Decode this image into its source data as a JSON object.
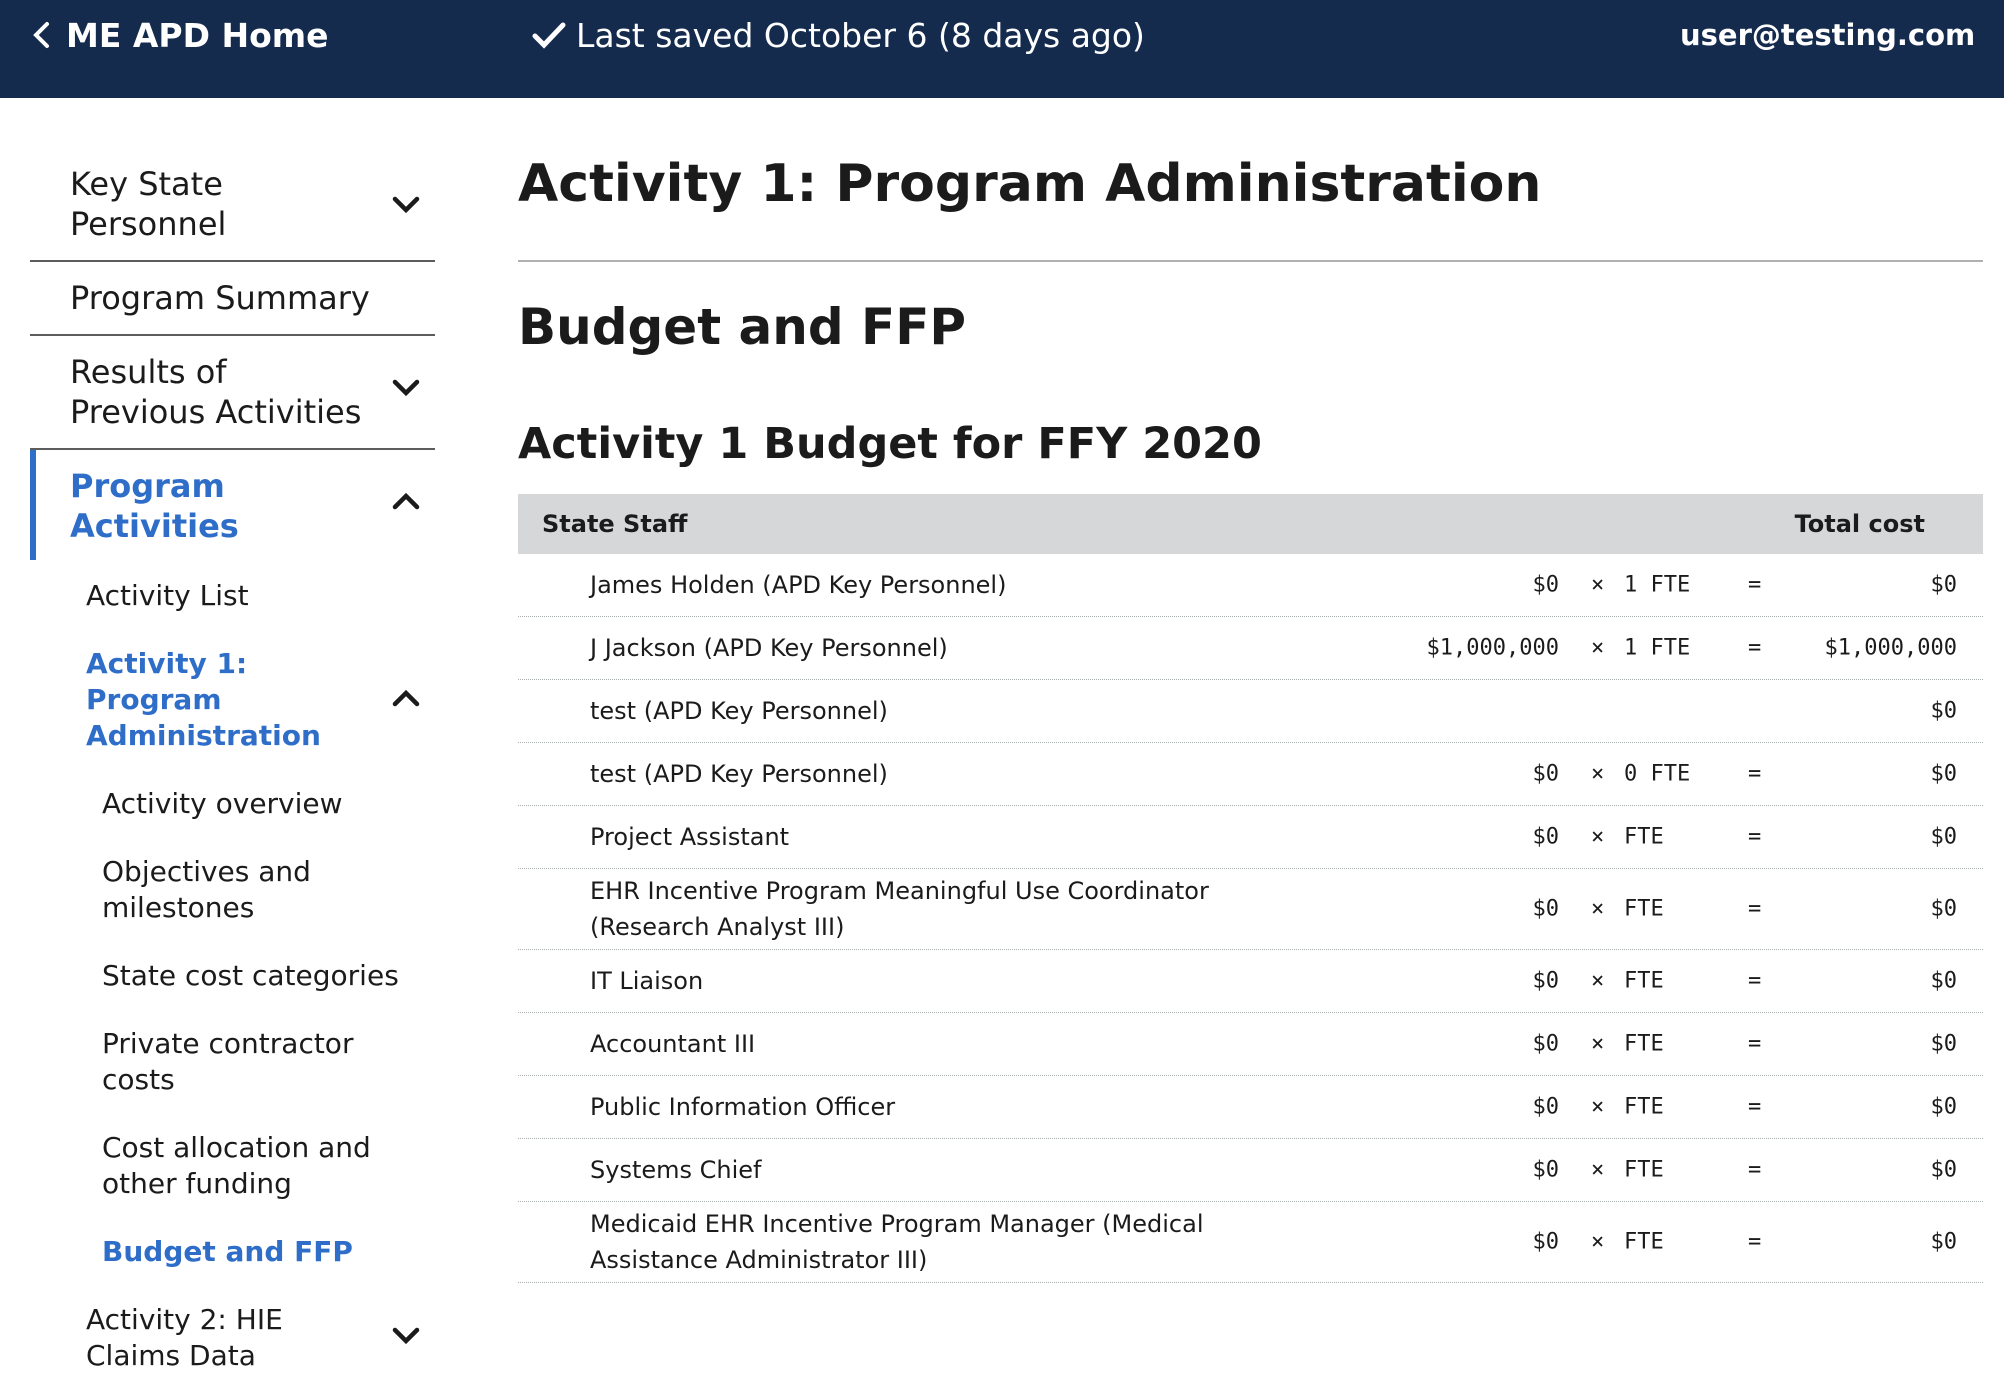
{
  "header": {
    "home_label": "ME APD Home",
    "saved_text": "Last saved October 6 (8 days ago)",
    "user_email": "user@testing.com"
  },
  "sidebar": {
    "items": [
      {
        "label": "Key State Personnel"
      },
      {
        "label": "Program Summary"
      },
      {
        "label": "Results of Previous Activities"
      },
      {
        "label": "Program Activities"
      }
    ],
    "activities": {
      "list_label": "Activity List",
      "activity1_label": "Activity 1: Program Administration",
      "sections": [
        "Activity overview",
        "Objectives and milestones",
        "State cost categories",
        "Private contractor costs",
        "Cost allocation and other funding",
        "Budget and FFP"
      ],
      "activity2_label": "Activity 2: HIE Claims Data"
    }
  },
  "main": {
    "title": "Activity 1: Program Administration",
    "section_title": "Budget and FFP",
    "budget_title": "Activity 1 Budget for FFY 2020",
    "table": {
      "col_staff": "State Staff",
      "col_total": "Total cost",
      "times_symbol": "×",
      "equals_symbol": "=",
      "rows": [
        {
          "name": "James Holden (APD Key Personnel)",
          "cost": "$0",
          "fte": "1 FTE",
          "total": "$0"
        },
        {
          "name": "J Jackson (APD Key Personnel)",
          "cost": "$1,000,000",
          "fte": "1 FTE",
          "total": "$1,000,000"
        },
        {
          "name": "test (APD Key Personnel)",
          "cost": "",
          "fte": "",
          "total": "$0"
        },
        {
          "name": "test (APD Key Personnel)",
          "cost": "$0",
          "fte": "0 FTE",
          "total": "$0"
        },
        {
          "name": "Project Assistant",
          "cost": "$0",
          "fte": "FTE",
          "total": "$0"
        },
        {
          "name": "EHR Incentive Program Meaningful Use Coordinator (Research Analyst III)",
          "cost": "$0",
          "fte": "FTE",
          "total": "$0"
        },
        {
          "name": "IT Liaison",
          "cost": "$0",
          "fte": "FTE",
          "total": "$0"
        },
        {
          "name": "Accountant III",
          "cost": "$0",
          "fte": "FTE",
          "total": "$0"
        },
        {
          "name": "Public Information Officer",
          "cost": "$0",
          "fte": "FTE",
          "total": "$0"
        },
        {
          "name": "Systems Chief",
          "cost": "$0",
          "fte": "FTE",
          "total": "$0"
        },
        {
          "name": "Medicaid EHR Incentive Program Manager (Medical Assistance Administrator III)",
          "cost": "$0",
          "fte": "FTE",
          "total": "$0"
        }
      ]
    }
  },
  "colors": {
    "header_bg": "#142b4e",
    "accent": "#2e6ec8",
    "table_header_bg": "#d6d7d9"
  }
}
